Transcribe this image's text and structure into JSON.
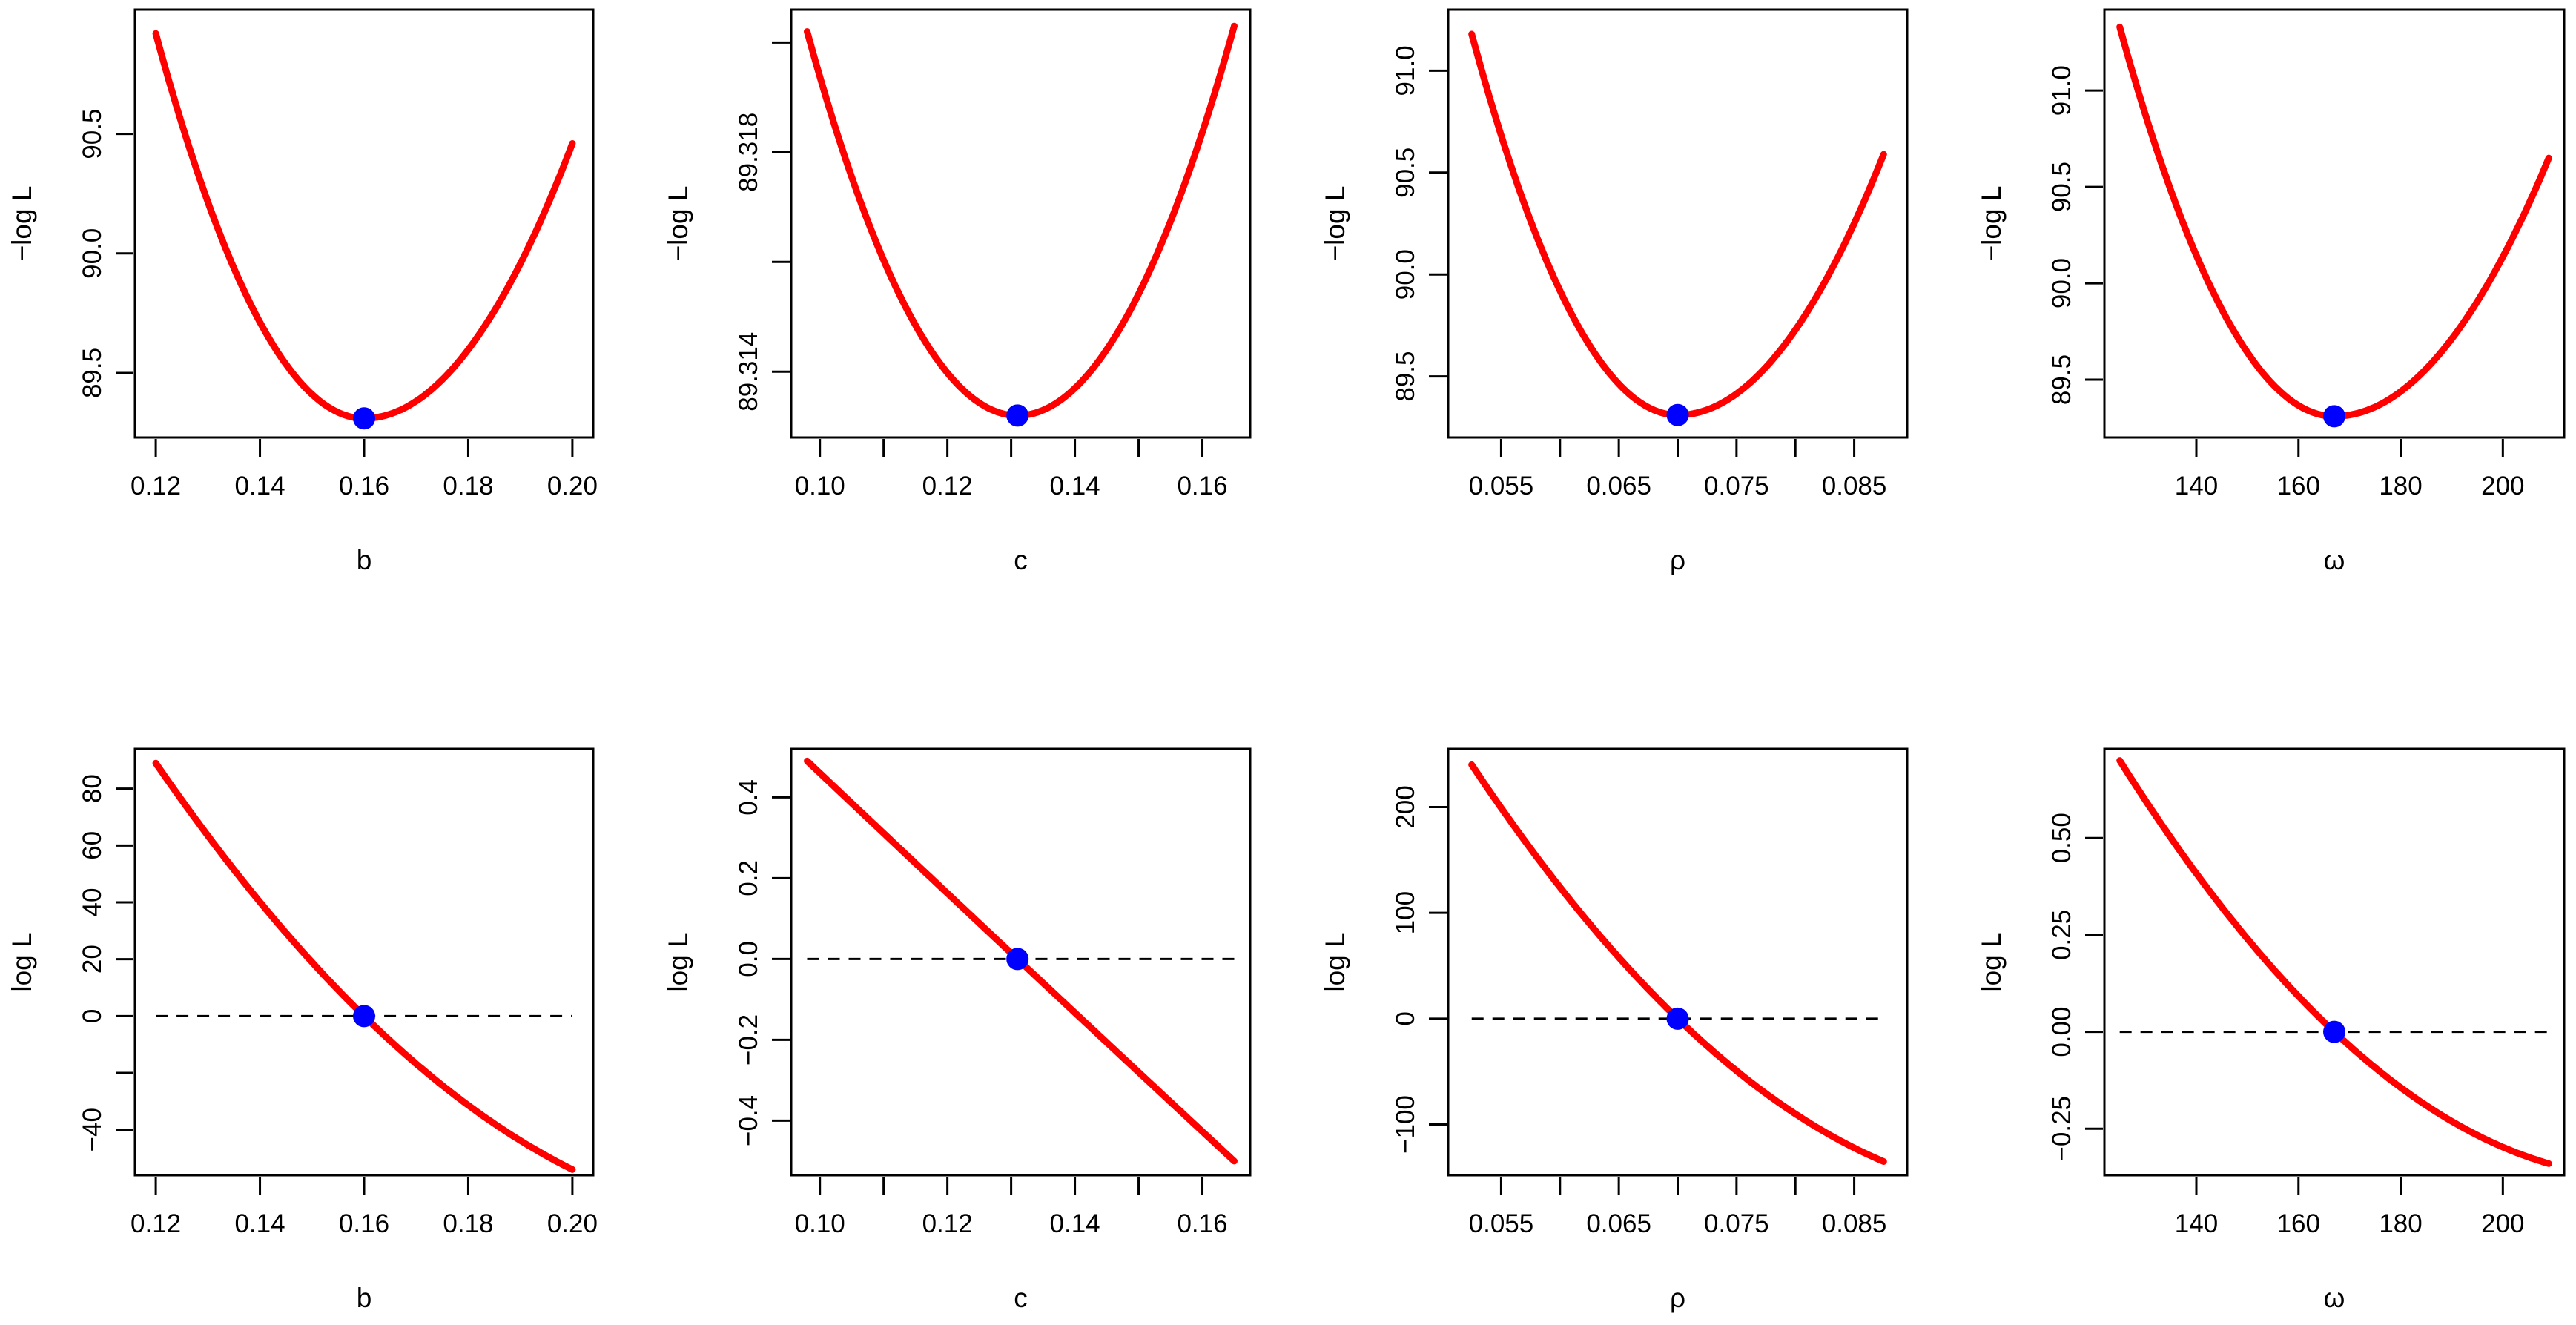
{
  "figure": "Profile negative log-likelihood (top) and score-type curves (bottom) for parameters b, c, rho, omega",
  "colors": {
    "curve": "#ff0000",
    "point": "#0000ff",
    "axis": "#000000",
    "reference_line": "#000000"
  },
  "chart_data": [
    {
      "type": "line",
      "row": 1,
      "xlabel": "b",
      "ylabel": "−log L",
      "xlim": [
        0.116,
        0.204
      ],
      "ylim": [
        89.23,
        91.02
      ],
      "xticks": [
        0.12,
        0.14,
        0.16,
        0.18,
        0.2
      ],
      "xtick_labels": [
        "0.12",
        "0.14",
        "0.16",
        "0.18",
        "0.20"
      ],
      "yticks": [
        89.5,
        90.0,
        90.5
      ],
      "ytick_labels": [
        "89.5",
        "90.0",
        "90.5"
      ],
      "curve": {
        "x_start": 0.12,
        "x_end": 0.2,
        "x_min": 0.16,
        "y_min": 89.31,
        "y_start": 90.92,
        "y_end": 90.46
      },
      "point": {
        "x": 0.16,
        "y": 89.31
      },
      "reference_line": null
    },
    {
      "type": "line",
      "row": 1,
      "xlabel": "c",
      "ylabel": "−log L",
      "xlim": [
        0.0955,
        0.1675
      ],
      "ylim": [
        89.3128,
        89.3206
      ],
      "xticks": [
        0.1,
        0.11,
        0.12,
        0.13,
        0.14,
        0.15,
        0.16
      ],
      "xtick_labels": [
        "0.10",
        "",
        "0.12",
        "",
        "0.14",
        "",
        "0.16"
      ],
      "yticks": [
        89.314,
        89.316,
        89.318,
        89.32
      ],
      "ytick_labels": [
        "89.314",
        "",
        "89.318",
        ""
      ],
      "curve": {
        "x_start": 0.098,
        "x_end": 0.165,
        "x_min": 0.131,
        "y_min": 89.3132,
        "y_start": 89.3202,
        "y_end": 89.3203
      },
      "point": {
        "x": 0.131,
        "y": 89.3132
      },
      "reference_line": null
    },
    {
      "type": "line",
      "row": 1,
      "xlabel": "ρ",
      "ylabel": "−log L",
      "xlim": [
        0.0505,
        0.0895
      ],
      "ylim": [
        89.2,
        91.3
      ],
      "xticks": [
        0.055,
        0.06,
        0.065,
        0.07,
        0.075,
        0.08,
        0.085
      ],
      "xtick_labels": [
        "0.055",
        "",
        "0.065",
        "",
        "0.075",
        "",
        "0.085"
      ],
      "yticks": [
        89.5,
        90.0,
        90.5,
        91.0
      ],
      "ytick_labels": [
        "89.5",
        "90.0",
        "90.5",
        "91.0"
      ],
      "curve": {
        "x_start": 0.0525,
        "x_end": 0.0875,
        "x_min": 0.07,
        "y_min": 89.31,
        "y_start": 91.18,
        "y_end": 90.59
      },
      "point": {
        "x": 0.07,
        "y": 89.31
      },
      "reference_line": null
    },
    {
      "type": "line",
      "row": 1,
      "xlabel": "ω",
      "ylabel": "−log L",
      "xlim": [
        122,
        212
      ],
      "ylim": [
        89.2,
        91.42
      ],
      "xticks": [
        140,
        160,
        180,
        200
      ],
      "xtick_labels": [
        "140",
        "160",
        "180",
        "200"
      ],
      "yticks": [
        89.5,
        90.0,
        90.5,
        91.0
      ],
      "ytick_labels": [
        "89.5",
        "90.0",
        "90.5",
        "91.0"
      ],
      "curve": {
        "x_start": 125,
        "x_end": 209,
        "x_min": 167,
        "y_min": 89.31,
        "y_start": 91.33,
        "y_end": 90.65
      },
      "point": {
        "x": 167,
        "y": 89.31
      },
      "reference_line": null
    },
    {
      "type": "line",
      "row": 2,
      "xlabel": "b",
      "ylabel": "log L",
      "xlim": [
        0.116,
        0.204
      ],
      "ylim": [
        -56,
        94
      ],
      "xticks": [
        0.12,
        0.14,
        0.16,
        0.18,
        0.2
      ],
      "xtick_labels": [
        "0.12",
        "0.14",
        "0.16",
        "0.18",
        "0.20"
      ],
      "yticks": [
        -40,
        -20,
        0,
        20,
        40,
        60,
        80
      ],
      "ytick_labels": [
        "−40",
        "",
        "0",
        "20",
        "40",
        "60",
        "80"
      ],
      "curve": {
        "x_start": 0.12,
        "x_end": 0.2,
        "y_start": 89,
        "y_end": -54,
        "y_root": 0,
        "x_root": 0.16
      },
      "point": {
        "x": 0.16,
        "y": 0
      },
      "reference_line": {
        "y": 0,
        "x_start": 0.12,
        "x_end": 0.2
      }
    },
    {
      "type": "line",
      "row": 2,
      "xlabel": "c",
      "ylabel": "log L",
      "xlim": [
        0.0955,
        0.1675
      ],
      "ylim": [
        -0.535,
        0.52
      ],
      "xticks": [
        0.1,
        0.11,
        0.12,
        0.13,
        0.14,
        0.15,
        0.16
      ],
      "xtick_labels": [
        "0.10",
        "",
        "0.12",
        "",
        "0.14",
        "",
        "0.16"
      ],
      "yticks": [
        -0.4,
        -0.2,
        0.0,
        0.2,
        0.4
      ],
      "ytick_labels": [
        "−0.4",
        "−0.2",
        "0.0",
        "0.2",
        "0.4"
      ],
      "curve": {
        "x_start": 0.098,
        "x_end": 0.165,
        "y_start": 0.49,
        "y_end": -0.5,
        "y_root": 0,
        "x_root": 0.131
      },
      "point": {
        "x": 0.131,
        "y": 0
      },
      "reference_line": {
        "y": 0,
        "x_start": 0.098,
        "x_end": 0.165
      }
    },
    {
      "type": "line",
      "row": 2,
      "xlabel": "ρ",
      "ylabel": "log L",
      "xlim": [
        0.0505,
        0.0895
      ],
      "ylim": [
        -148,
        255
      ],
      "xticks": [
        0.055,
        0.06,
        0.065,
        0.07,
        0.075,
        0.08,
        0.085
      ],
      "xtick_labels": [
        "0.055",
        "",
        "0.065",
        "",
        "0.075",
        "",
        "0.085"
      ],
      "yticks": [
        -100,
        0,
        100,
        200
      ],
      "ytick_labels": [
        "−100",
        "0",
        "100",
        "200"
      ],
      "curve": {
        "x_start": 0.0525,
        "x_end": 0.0875,
        "y_start": 240,
        "y_end": -135,
        "y_root": 0,
        "x_root": 0.07
      },
      "point": {
        "x": 0.07,
        "y": 0
      },
      "reference_line": {
        "y": 0,
        "x_start": 0.0525,
        "x_end": 0.0875
      }
    },
    {
      "type": "line",
      "row": 2,
      "xlabel": "ω",
      "ylabel": "log L",
      "xlim": [
        122,
        212
      ],
      "ylim": [
        -0.37,
        0.73
      ],
      "xticks": [
        140,
        160,
        180,
        200
      ],
      "xtick_labels": [
        "140",
        "160",
        "180",
        "200"
      ],
      "yticks": [
        -0.25,
        0.0,
        0.25,
        0.5
      ],
      "ytick_labels": [
        "−0.25",
        "0.00",
        "0.25",
        "0.50"
      ],
      "curve": {
        "x_start": 125,
        "x_end": 209,
        "y_start": 0.7,
        "y_end": -0.34,
        "y_root": 0,
        "x_root": 167
      },
      "point": {
        "x": 167,
        "y": 0
      },
      "reference_line": {
        "y": 0,
        "x_start": 125,
        "x_end": 209
      }
    }
  ]
}
